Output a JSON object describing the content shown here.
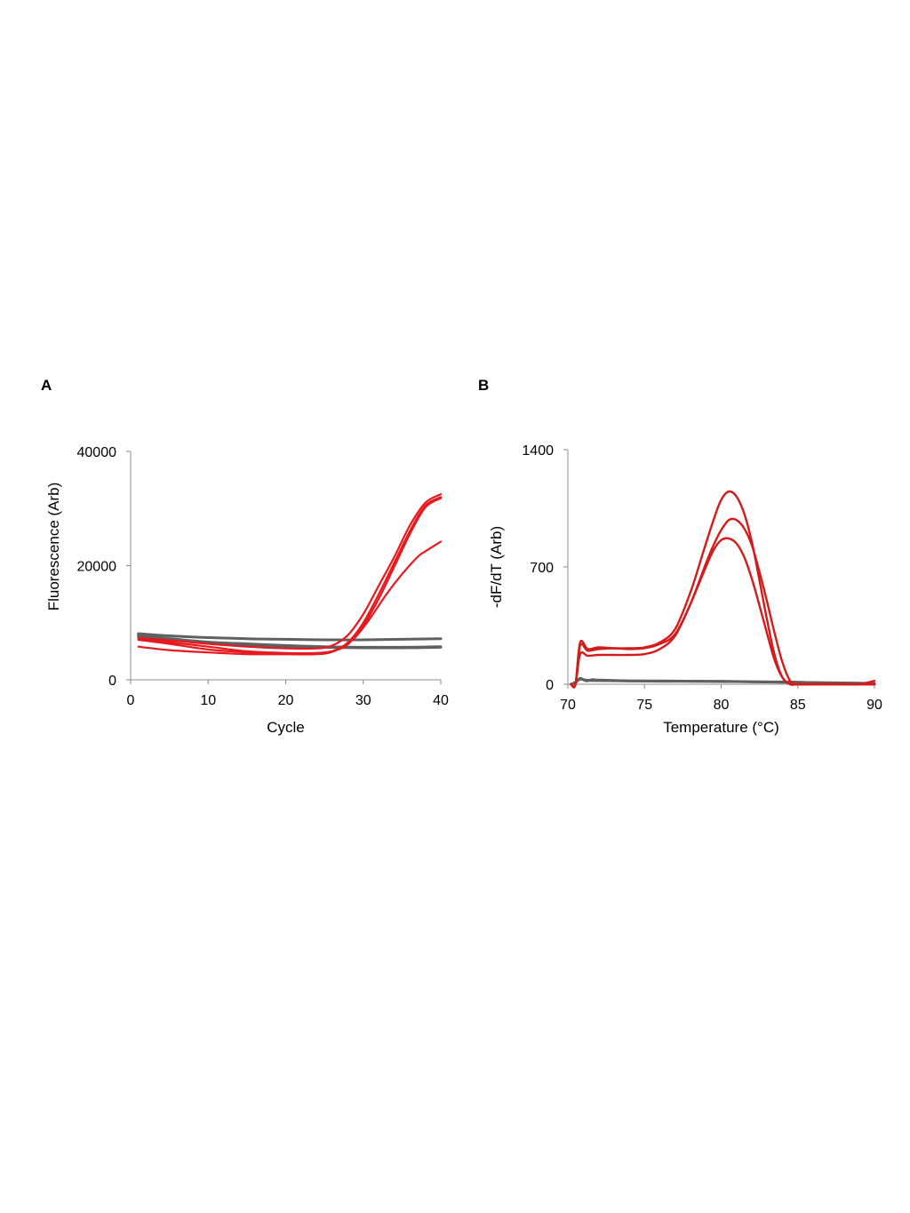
{
  "panels": {
    "a_label": "A",
    "b_label": "B"
  },
  "chart_data": [
    {
      "id": "A",
      "type": "line",
      "title": "",
      "xlabel": "Cycle",
      "ylabel": "Fluorescence (Arb)",
      "xlim": [
        0,
        40
      ],
      "ylim": [
        0,
        40000
      ],
      "xticks": [
        0,
        10,
        20,
        30,
        40
      ],
      "yticks": [
        0,
        20000,
        40000
      ],
      "grid": false,
      "legend": "none",
      "colors": {
        "positive": "#e8191e",
        "negative": "#606060"
      },
      "series": [
        {
          "group": "positive",
          "x": [
            1,
            5,
            10,
            15,
            20,
            24,
            26,
            28,
            30,
            32,
            34,
            36,
            38,
            40
          ],
          "y": [
            7000,
            6300,
            5300,
            4800,
            4500,
            4500,
            4900,
            6500,
            10000,
            15000,
            20500,
            26000,
            30500,
            32000
          ]
        },
        {
          "group": "positive",
          "x": [
            1,
            5,
            10,
            15,
            20,
            24,
            26,
            28,
            30,
            32,
            34,
            36,
            38,
            40
          ],
          "y": [
            7200,
            6600,
            5800,
            5000,
            4700,
            4700,
            5000,
            6200,
            9500,
            14200,
            19800,
            25500,
            30200,
            31800
          ]
        },
        {
          "group": "positive",
          "x": [
            1,
            5,
            10,
            15,
            20,
            25,
            27,
            29,
            31,
            33,
            35,
            37,
            38,
            40
          ],
          "y": [
            5800,
            5200,
            4800,
            4500,
            4500,
            4800,
            5600,
            7500,
            11000,
            15000,
            18500,
            21500,
            22500,
            24200
          ]
        },
        {
          "group": "positive",
          "x": [
            1,
            5,
            10,
            15,
            20,
            24,
            26,
            28,
            30,
            32,
            34,
            36,
            38,
            40
          ],
          "y": [
            7300,
            6900,
            6300,
            5800,
            5500,
            5500,
            6000,
            7800,
            11500,
            16500,
            21500,
            27000,
            31000,
            32500
          ]
        },
        {
          "group": "negative",
          "x": [
            1,
            5,
            10,
            15,
            20,
            25,
            30,
            35,
            40
          ],
          "y": [
            8100,
            7700,
            7400,
            7200,
            7100,
            7000,
            7000,
            7100,
            7200
          ]
        },
        {
          "group": "negative",
          "x": [
            1,
            5,
            10,
            15,
            20,
            25,
            30,
            35,
            40
          ],
          "y": [
            7800,
            7200,
            6600,
            6300,
            6000,
            5800,
            5700,
            5700,
            5800
          ]
        },
        {
          "group": "negative",
          "x": [
            1,
            5,
            10,
            15,
            20,
            25,
            30,
            35,
            40
          ],
          "y": [
            7600,
            7000,
            6500,
            6100,
            5800,
            5700,
            5600,
            5600,
            5700
          ]
        }
      ]
    },
    {
      "id": "B",
      "type": "line",
      "title": "",
      "xlabel": "Temperature (°C)",
      "ylabel": "-dF/dT (Arb)",
      "xlim": [
        70,
        90
      ],
      "ylim": [
        0,
        1400
      ],
      "xticks": [
        70,
        75,
        80,
        85,
        90
      ],
      "yticks": [
        0,
        700,
        1400
      ],
      "grid": false,
      "legend": "none",
      "colors": {
        "positive": "#d41b1b",
        "negative": "#606060"
      },
      "series": [
        {
          "group": "positive",
          "x": [
            70.2,
            70.5,
            70.8,
            71.3,
            72,
            73,
            74,
            75,
            76,
            77,
            78,
            78.8,
            79.5,
            80,
            80.5,
            81,
            81.5,
            82,
            82.5,
            83,
            83.5,
            84,
            84.5,
            85,
            87,
            89,
            90
          ],
          "y": [
            0,
            0,
            250,
            210,
            220,
            215,
            215,
            220,
            250,
            330,
            550,
            780,
            980,
            1100,
            1150,
            1120,
            1020,
            850,
            620,
            380,
            170,
            40,
            0,
            0,
            0,
            0,
            0
          ]
        },
        {
          "group": "positive",
          "x": [
            70.2,
            70.5,
            70.8,
            71.3,
            72,
            73,
            74,
            75,
            76,
            77,
            78,
            79,
            79.5,
            80,
            80.5,
            81,
            81.5,
            82,
            82.5,
            83,
            83.5,
            84,
            84.5,
            85,
            86,
            87,
            88,
            89,
            90
          ],
          "y": [
            0,
            0,
            230,
            200,
            210,
            215,
            210,
            215,
            240,
            300,
            480,
            720,
            830,
            920,
            980,
            980,
            930,
            830,
            670,
            490,
            300,
            130,
            20,
            0,
            0,
            0,
            0,
            0,
            0
          ]
        },
        {
          "group": "positive",
          "x": [
            70.2,
            70.5,
            70.8,
            71.3,
            72,
            73,
            74,
            75,
            76,
            77,
            78,
            79,
            79.5,
            80,
            80.5,
            81,
            81.5,
            82,
            82.5,
            83,
            83.5,
            84,
            84.5,
            85,
            86,
            87,
            88,
            89,
            90
          ],
          "y": [
            0,
            0,
            180,
            170,
            175,
            175,
            175,
            180,
            210,
            290,
            480,
            700,
            800,
            860,
            870,
            840,
            760,
            630,
            470,
            300,
            140,
            40,
            0,
            0,
            0,
            0,
            0,
            0,
            20
          ]
        },
        {
          "group": "negative",
          "x": [
            70.2,
            70.5,
            70.8,
            71.2,
            71.6,
            72,
            74,
            76,
            78,
            80,
            82,
            84,
            86,
            88,
            90
          ],
          "y": [
            0,
            10,
            35,
            20,
            28,
            25,
            20,
            18,
            18,
            16,
            15,
            12,
            10,
            5,
            0
          ]
        },
        {
          "group": "negative",
          "x": [
            70.2,
            70.5,
            70.8,
            71.2,
            71.6,
            72,
            74,
            76,
            78,
            80,
            82,
            84,
            86,
            88,
            90
          ],
          "y": [
            0,
            12,
            30,
            25,
            22,
            22,
            20,
            20,
            18,
            18,
            15,
            14,
            10,
            8,
            5
          ]
        }
      ]
    }
  ]
}
